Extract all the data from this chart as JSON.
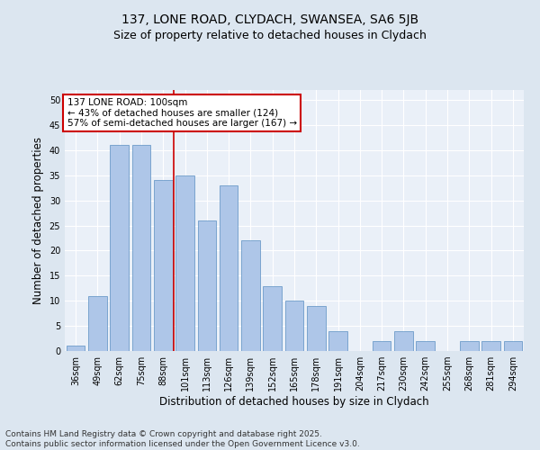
{
  "title_line1": "137, LONE ROAD, CLYDACH, SWANSEA, SA6 5JB",
  "title_line2": "Size of property relative to detached houses in Clydach",
  "xlabel": "Distribution of detached houses by size in Clydach",
  "ylabel": "Number of detached properties",
  "categories": [
    "36sqm",
    "49sqm",
    "62sqm",
    "75sqm",
    "88sqm",
    "101sqm",
    "113sqm",
    "126sqm",
    "139sqm",
    "152sqm",
    "165sqm",
    "178sqm",
    "191sqm",
    "204sqm",
    "217sqm",
    "230sqm",
    "242sqm",
    "255sqm",
    "268sqm",
    "281sqm",
    "294sqm"
  ],
  "values": [
    1,
    11,
    41,
    41,
    34,
    35,
    26,
    33,
    22,
    13,
    10,
    9,
    4,
    0,
    2,
    4,
    2,
    0,
    2,
    2,
    2
  ],
  "bar_color": "#aec6e8",
  "bar_edge_color": "#5a8fc2",
  "vline_x_index": 5,
  "vline_color": "#cc0000",
  "annotation_text_line1": "137 LONE ROAD: 100sqm",
  "annotation_text_line2": "← 43% of detached houses are smaller (124)",
  "annotation_text_line3": "57% of semi-detached houses are larger (167) →",
  "annotation_box_color": "#ffffff",
  "annotation_box_edge_color": "#cc0000",
  "ylim": [
    0,
    52
  ],
  "yticks": [
    0,
    5,
    10,
    15,
    20,
    25,
    30,
    35,
    40,
    45,
    50
  ],
  "bg_color": "#dce6f0",
  "plot_bg_color": "#eaf0f8",
  "footer_line1": "Contains HM Land Registry data © Crown copyright and database right 2025.",
  "footer_line2": "Contains public sector information licensed under the Open Government Licence v3.0.",
  "title_fontsize": 10,
  "subtitle_fontsize": 9,
  "axis_label_fontsize": 8.5,
  "tick_fontsize": 7,
  "annotation_fontsize": 7.5,
  "footer_fontsize": 6.5,
  "grid_color": "#ffffff",
  "grid_linewidth": 0.8
}
